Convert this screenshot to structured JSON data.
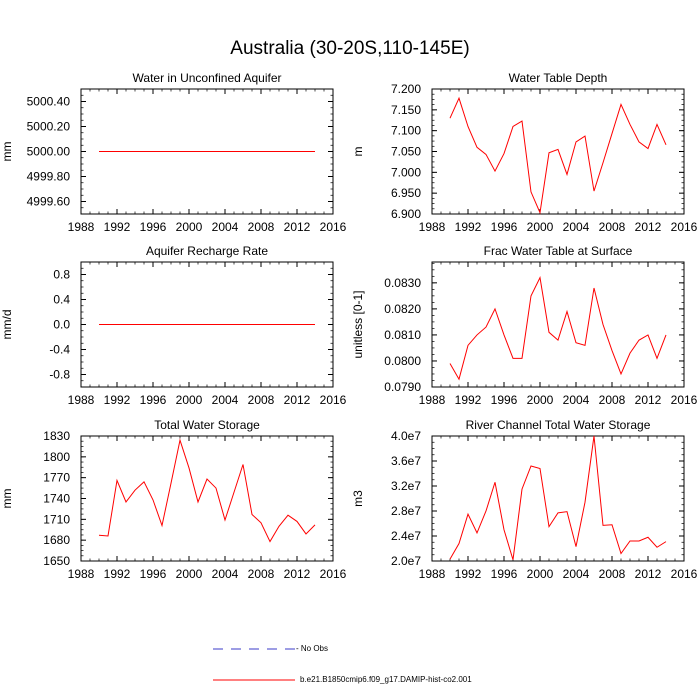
{
  "title": "Australia (30-20S,110-145E)",
  "colors": {
    "model": "#ff0000",
    "obs": "#3b3bc8",
    "axis": "#000000"
  },
  "legend": {
    "obs_label": "- No Obs",
    "model_label": "b.e21.B1850cmip6.f09_g17.DAMIP-hist-co2.001"
  },
  "chart_data": [
    {
      "type": "line",
      "title": "Water in Unconfined Aquifer",
      "ylabel": "mm",
      "xlim": [
        1988,
        2016
      ],
      "ylim": [
        4999.5,
        5000.5
      ],
      "xticks": [
        1988,
        1992,
        1996,
        2000,
        2004,
        2008,
        2012,
        2016
      ],
      "xtick_labels": [
        "1988",
        "1992",
        "1996",
        "2000",
        "2004",
        "2008",
        "2012",
        "2016"
      ],
      "yticks": [
        4999.6,
        4999.8,
        5000.0,
        5000.2,
        5000.4
      ],
      "ytick_labels": [
        "4999.60",
        "4999.80",
        "5000.00",
        "5000.20",
        "5000.40"
      ],
      "series": [
        {
          "name": "b.e21.B1850cmip6.f09_g17.DAMIP-hist-co2.001",
          "x": [
            1990,
            1991,
            1992,
            1993,
            1994,
            1995,
            1996,
            1997,
            1998,
            1999,
            2000,
            2001,
            2002,
            2003,
            2004,
            2005,
            2006,
            2007,
            2008,
            2009,
            2010,
            2011,
            2012,
            2013,
            2014
          ],
          "values": [
            5000,
            5000,
            5000,
            5000,
            5000,
            5000,
            5000,
            5000,
            5000,
            5000,
            5000,
            5000,
            5000,
            5000,
            5000,
            5000,
            5000,
            5000,
            5000,
            5000,
            5000,
            5000,
            5000,
            5000,
            5000
          ]
        }
      ]
    },
    {
      "type": "line",
      "title": "Water Table Depth",
      "ylabel": "m",
      "xlim": [
        1988,
        2016
      ],
      "ylim": [
        6.9,
        7.2
      ],
      "xticks": [
        1988,
        1992,
        1996,
        2000,
        2004,
        2008,
        2012,
        2016
      ],
      "xtick_labels": [
        "1988",
        "1992",
        "1996",
        "2000",
        "2004",
        "2008",
        "2012",
        "2016"
      ],
      "yticks": [
        6.9,
        6.95,
        7.0,
        7.05,
        7.1,
        7.15,
        7.2
      ],
      "ytick_labels": [
        "6.900",
        "6.950",
        "7.000",
        "7.050",
        "7.100",
        "7.150",
        "7.200"
      ],
      "series": [
        {
          "name": "b.e21.B1850cmip6.f09_g17.DAMIP-hist-co2.001",
          "x": [
            1990,
            1991,
            1992,
            1993,
            1994,
            1995,
            1996,
            1997,
            1998,
            1999,
            2000,
            2001,
            2002,
            2003,
            2004,
            2005,
            2006,
            2007,
            2008,
            2009,
            2010,
            2011,
            2012,
            2013,
            2014
          ],
          "values": [
            7.13,
            7.178,
            7.11,
            7.06,
            7.043,
            7.003,
            7.045,
            7.11,
            7.123,
            6.953,
            6.903,
            7.047,
            7.055,
            6.995,
            7.073,
            7.087,
            6.955,
            7.023,
            7.093,
            7.163,
            7.115,
            7.073,
            7.057,
            7.115,
            7.066
          ]
        }
      ]
    },
    {
      "type": "line",
      "title": "Aquifer Recharge Rate",
      "ylabel": "mm/d",
      "xlim": [
        1988,
        2016
      ],
      "ylim": [
        -1.0,
        1.0
      ],
      "xticks": [
        1988,
        1992,
        1996,
        2000,
        2004,
        2008,
        2012,
        2016
      ],
      "xtick_labels": [
        "1988",
        "1992",
        "1996",
        "2000",
        "2004",
        "2008",
        "2012",
        "2016"
      ],
      "yticks": [
        -0.8,
        -0.4,
        0.0,
        0.4,
        0.8
      ],
      "ytick_labels": [
        "-0.8",
        "-0.4",
        "0.0",
        "0.4",
        "0.8"
      ],
      "series": [
        {
          "name": "b.e21.B1850cmip6.f09_g17.DAMIP-hist-co2.001",
          "x": [
            1990,
            1991,
            1992,
            1993,
            1994,
            1995,
            1996,
            1997,
            1998,
            1999,
            2000,
            2001,
            2002,
            2003,
            2004,
            2005,
            2006,
            2007,
            2008,
            2009,
            2010,
            2011,
            2012,
            2013,
            2014
          ],
          "values": [
            0,
            0,
            0,
            0,
            0,
            0,
            0,
            0,
            0,
            0,
            0,
            0,
            0,
            0,
            0,
            0,
            0,
            0,
            0,
            0,
            0,
            0,
            0,
            0,
            0
          ]
        }
      ]
    },
    {
      "type": "line",
      "title": "Frac Water Table at Surface",
      "ylabel": "unitless [0-1]",
      "xlim": [
        1988,
        2016
      ],
      "ylim": [
        0.079,
        0.0838
      ],
      "xticks": [
        1988,
        1992,
        1996,
        2000,
        2004,
        2008,
        2012,
        2016
      ],
      "xtick_labels": [
        "1988",
        "1992",
        "1996",
        "2000",
        "2004",
        "2008",
        "2012",
        "2016"
      ],
      "yticks": [
        0.079,
        0.08,
        0.081,
        0.082,
        0.083
      ],
      "ytick_labels": [
        "0.0790",
        "0.0800",
        "0.0810",
        "0.0820",
        "0.0830"
      ],
      "series": [
        {
          "name": "b.e21.B1850cmip6.f09_g17.DAMIP-hist-co2.001",
          "x": [
            1990,
            1991,
            1992,
            1993,
            1994,
            1995,
            1996,
            1997,
            1998,
            1999,
            2000,
            2001,
            2002,
            2003,
            2004,
            2005,
            2006,
            2007,
            2008,
            2009,
            2010,
            2011,
            2012,
            2013,
            2014
          ],
          "values": [
            0.0799,
            0.0793,
            0.0806,
            0.081,
            0.0813,
            0.082,
            0.081,
            0.0801,
            0.0801,
            0.0825,
            0.0832,
            0.0811,
            0.0808,
            0.0819,
            0.0807,
            0.0806,
            0.0828,
            0.0814,
            0.0804,
            0.0795,
            0.0803,
            0.0808,
            0.081,
            0.0801,
            0.081
          ]
        }
      ]
    },
    {
      "type": "line",
      "title": "Total Water Storage",
      "ylabel": "mm",
      "xlim": [
        1988,
        2016
      ],
      "ylim": [
        1650,
        1830
      ],
      "xticks": [
        1988,
        1992,
        1996,
        2000,
        2004,
        2008,
        2012,
        2016
      ],
      "xtick_labels": [
        "1988",
        "1992",
        "1996",
        "2000",
        "2004",
        "2008",
        "2012",
        "2016"
      ],
      "yticks": [
        1650,
        1680,
        1710,
        1740,
        1770,
        1800,
        1830
      ],
      "ytick_labels": [
        "1650",
        "1680",
        "1710",
        "1740",
        "1770",
        "1800",
        "1830"
      ],
      "series": [
        {
          "name": "b.e21.B1850cmip6.f09_g17.DAMIP-hist-co2.001",
          "x": [
            1990,
            1991,
            1992,
            1993,
            1994,
            1995,
            1996,
            1997,
            1998,
            1999,
            2000,
            2001,
            2002,
            2003,
            2004,
            2005,
            2006,
            2007,
            2008,
            2009,
            2010,
            2011,
            2012,
            2013,
            2014
          ],
          "values": [
            1687,
            1686,
            1766,
            1735,
            1752,
            1764,
            1738,
            1701,
            1762,
            1824,
            1784,
            1735,
            1768,
            1755,
            1709,
            1749,
            1789,
            1717,
            1705,
            1678,
            1700,
            1716,
            1707,
            1689,
            1702
          ]
        }
      ]
    },
    {
      "type": "line",
      "title": "River Channel Total Water Storage",
      "ylabel": "m3",
      "xlim": [
        1988,
        2016
      ],
      "ylim": [
        20000000.0,
        40000000.0
      ],
      "xticks": [
        1988,
        1992,
        1996,
        2000,
        2004,
        2008,
        2012,
        2016
      ],
      "xtick_labels": [
        "1988",
        "1992",
        "1996",
        "2000",
        "2004",
        "2008",
        "2012",
        "2016"
      ],
      "yticks": [
        20000000.0,
        24000000.0,
        28000000.0,
        32000000.0,
        36000000.0,
        40000000.0
      ],
      "ytick_labels": [
        "2.0e7",
        "2.4e7",
        "2.8e7",
        "3.2e7",
        "3.6e7",
        "4.0e7"
      ],
      "series": [
        {
          "name": "b.e21.B1850cmip6.f09_g17.DAMIP-hist-co2.001",
          "x": [
            1990,
            1991,
            1992,
            1993,
            1994,
            1995,
            1996,
            1997,
            1998,
            1999,
            2000,
            2001,
            2002,
            2003,
            2004,
            2005,
            2006,
            2007,
            2008,
            2009,
            2010,
            2011,
            2012,
            2013,
            2014
          ],
          "values": [
            20300000.0,
            22800000.0,
            27500000.0,
            24500000.0,
            28000000.0,
            32600000.0,
            25000000.0,
            20200000.0,
            31500000.0,
            35200000.0,
            34800000.0,
            25500000.0,
            27700000.0,
            27900000.0,
            22300000.0,
            29400000.0,
            40000000.0,
            25700000.0,
            25800000.0,
            21200000.0,
            23200000.0,
            23200000.0,
            23800000.0,
            22200000.0,
            23100000.0
          ]
        }
      ]
    }
  ]
}
